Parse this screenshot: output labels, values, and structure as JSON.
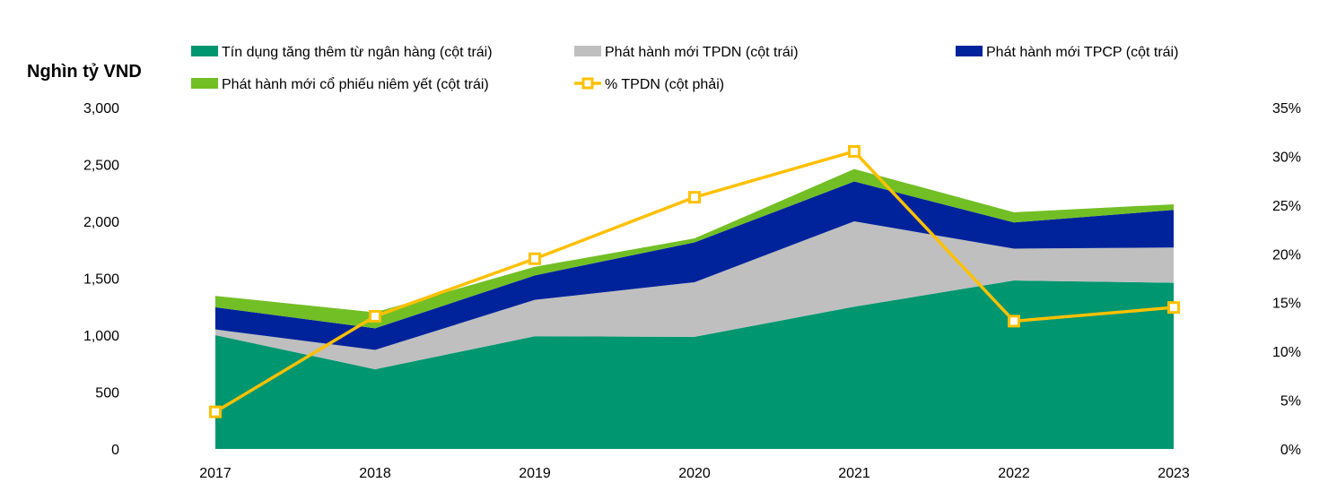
{
  "chart_data": {
    "type": "area",
    "unit_label": "Nghìn tỷ VND",
    "categories": [
      "2017",
      "2018",
      "2019",
      "2020",
      "2021",
      "2022",
      "2023"
    ],
    "stacked": true,
    "series": [
      {
        "name": "Tín dụng tăng thêm từ ngân hàng (cột trái)",
        "axis": "left",
        "type": "area",
        "color": "#009670",
        "values": [
          1000,
          700,
          990,
          985,
          1250,
          1480,
          1460
        ]
      },
      {
        "name": "Phát hành mới TPDN (cột trái)",
        "axis": "left",
        "type": "area",
        "color": "#bfbfbf",
        "values": [
          50,
          170,
          320,
          480,
          750,
          280,
          310
        ]
      },
      {
        "name": "Phát hành mới TPCP (cột trái)",
        "axis": "left",
        "type": "area",
        "color": "#00239c",
        "values": [
          195,
          190,
          215,
          350,
          350,
          230,
          330
        ]
      },
      {
        "name": "Phát hành mới cổ phiếu niêm yết (cột trái)",
        "axis": "left",
        "type": "area",
        "color": "#72bf25",
        "values": [
          100,
          140,
          75,
          35,
          110,
          90,
          50
        ]
      },
      {
        "name": "% TPDN (cột phải)",
        "axis": "right",
        "type": "line",
        "color": "#ffc000",
        "values": [
          3.8,
          13.6,
          19.5,
          25.8,
          30.5,
          13.1,
          14.5
        ]
      }
    ],
    "left_axis": {
      "min": 0,
      "max": 3000,
      "ticks": [
        "0",
        "500",
        "1,000",
        "1,500",
        "2,000",
        "2,500",
        "3,000"
      ]
    },
    "right_axis": {
      "min": 0,
      "max": 35,
      "ticks": [
        "0%",
        "5%",
        "10%",
        "15%",
        "20%",
        "25%",
        "30%",
        "35%"
      ]
    },
    "legend_placement": "top",
    "grid": false
  }
}
